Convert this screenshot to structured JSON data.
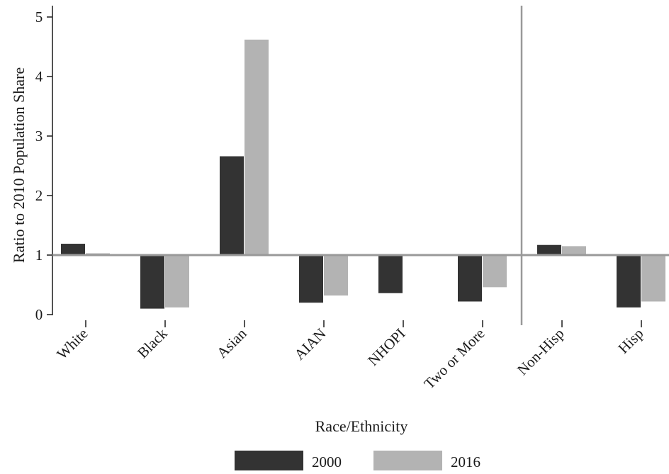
{
  "chart_data": {
    "type": "bar",
    "xlabel": "Race/Ethnicity",
    "ylabel": "Ratio to 2010 Population Share",
    "ylim": [
      0,
      5
    ],
    "yticks": [
      0,
      1,
      2,
      3,
      4,
      5
    ],
    "baseline": 1,
    "categories": [
      "White",
      "Black",
      "Asian",
      "AIAN",
      "NHOPI",
      "Two or More",
      "Non-Hisp",
      "Hisp"
    ],
    "series": [
      {
        "name": "2000",
        "color": "#333333",
        "values": [
          1.19,
          0.1,
          2.66,
          0.2,
          0.36,
          0.22,
          1.17,
          0.12
        ]
      },
      {
        "name": "2016",
        "color": "#b3b3b3",
        "values": [
          1.03,
          0.12,
          4.62,
          0.32,
          null,
          0.46,
          1.15,
          0.22
        ]
      }
    ],
    "divider_after_category": "Two or More",
    "grid": false,
    "legend": "bottom"
  }
}
